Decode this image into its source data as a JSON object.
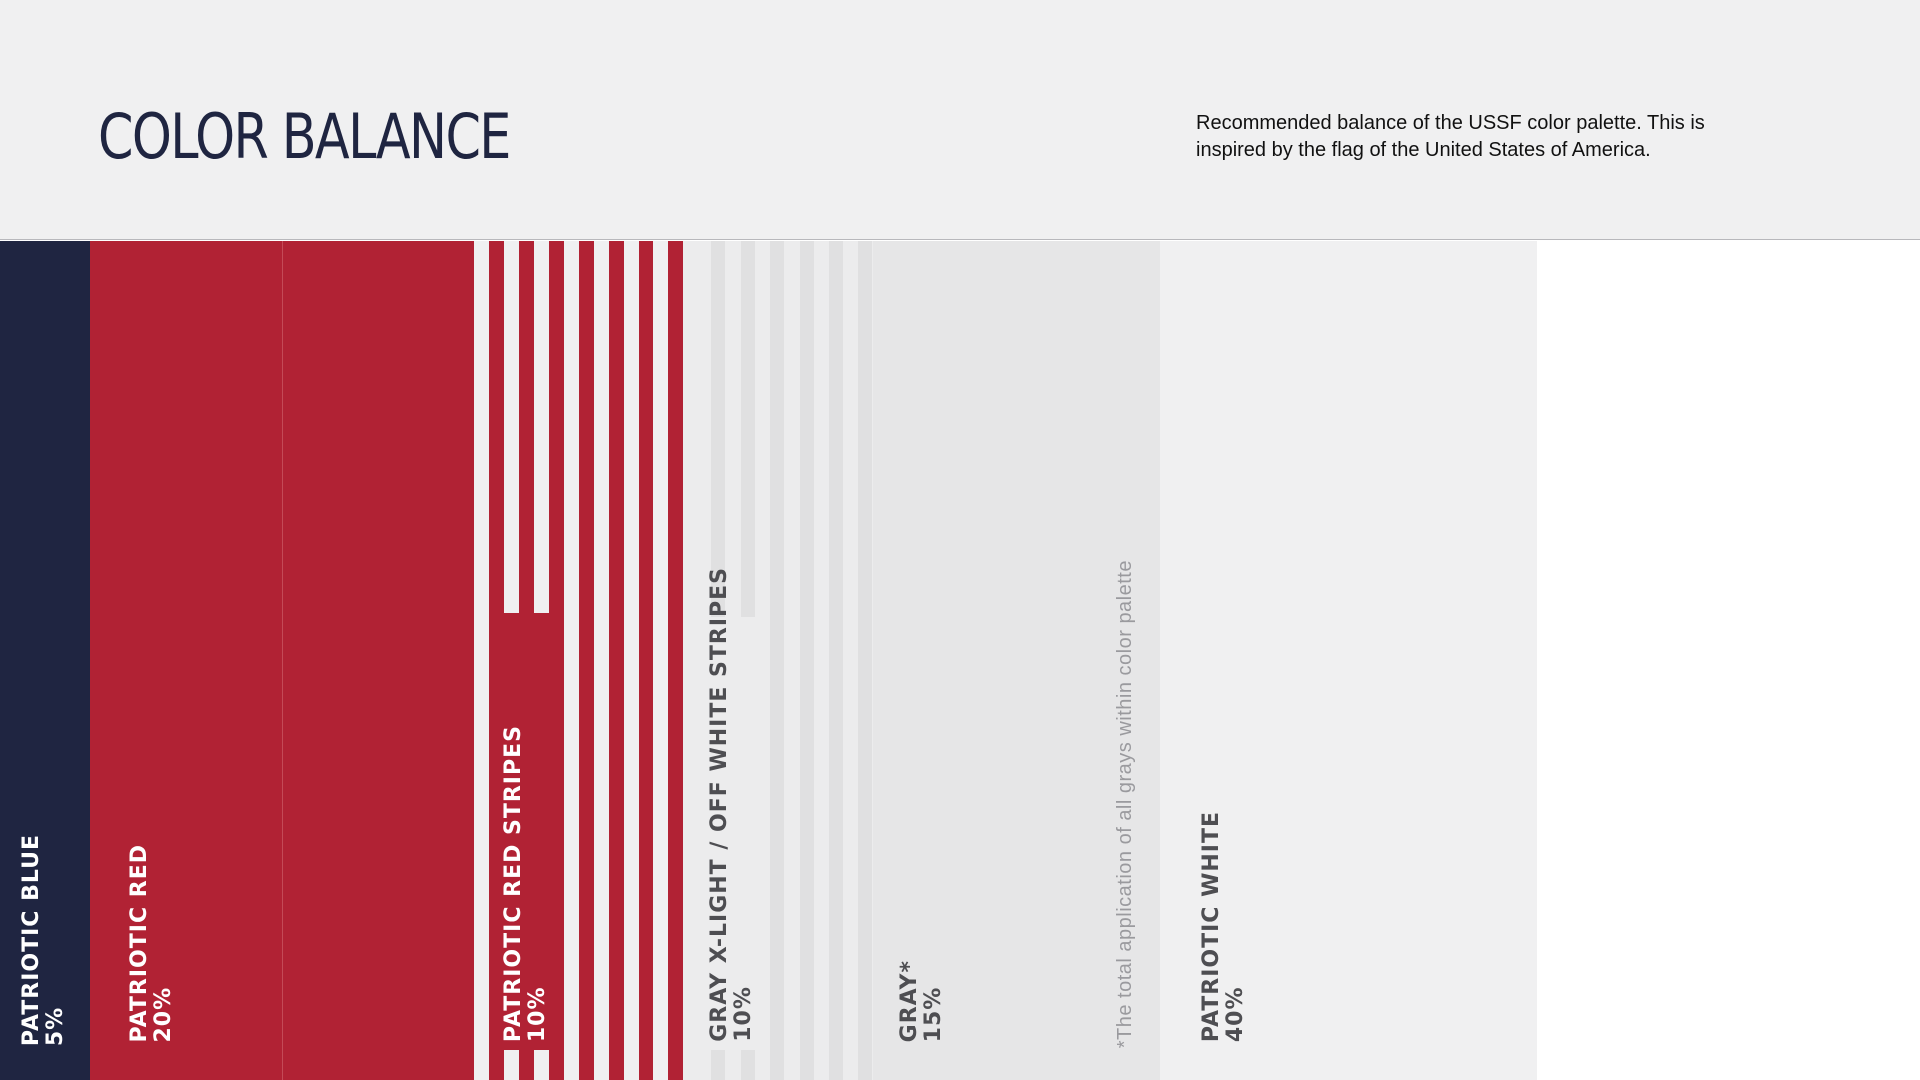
{
  "header": {
    "title": "COLOR BALANCE",
    "description": "Recommended balance of the USSF color palette. This is inspired by the flag of the United States of America."
  },
  "colors": {
    "patriotic_blue": "#1f2541",
    "patriotic_red": "#b12234",
    "gray_x_light": "#ececed",
    "gray": "#e6e6e7",
    "patriotic_white": "#f0f0f1"
  },
  "swatches": [
    {
      "name": "PATRIOTIC BLUE",
      "percent": "5%"
    },
    {
      "name": "PATRIOTIC RED",
      "percent": "20%"
    },
    {
      "name": "PATRIOTIC RED STRIPES",
      "percent": "10%"
    },
    {
      "name": "GRAY X-LIGHT / OFF WHITE STRIPES",
      "percent": "10%"
    },
    {
      "name": "GRAY*",
      "percent": "15%"
    },
    {
      "name": "PATRIOTIC WHITE",
      "percent": "40%"
    }
  ],
  "footnote": "*The total application of all grays within color palette"
}
